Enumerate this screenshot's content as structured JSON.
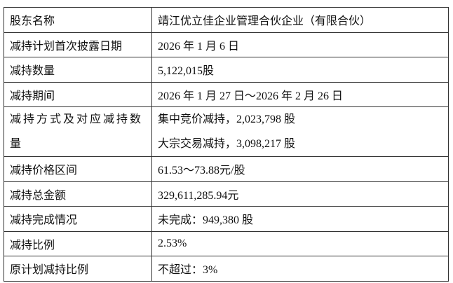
{
  "rows": [
    {
      "label": "股东名称",
      "value": "靖江优立佳企业管理合伙企业（有限合伙）"
    },
    {
      "label": "减持计划首次披露日期",
      "value": "2026 年 1 月 6 日"
    },
    {
      "label": "减持数量",
      "value": "5,122,015股"
    },
    {
      "label": "减持期间",
      "value": "2026 年 1 月 27 日～2026 年 2 月 26 日"
    },
    {
      "label": "减持方式及对应减持数量",
      "values": [
        "集中竞价减持，2,023,798 股",
        "大宗交易减持，3,098,217 股"
      ]
    },
    {
      "label": "减持价格区间",
      "value": "61.53～73.88元/股"
    },
    {
      "label": "减持总金额",
      "value": "329,611,285.94元"
    },
    {
      "label": "减持完成情况",
      "value": "未完成：949,380 股"
    },
    {
      "label": "减持比例",
      "value": "2.53%"
    },
    {
      "label": "原计划减持比例",
      "value": "不超过：3%"
    }
  ]
}
